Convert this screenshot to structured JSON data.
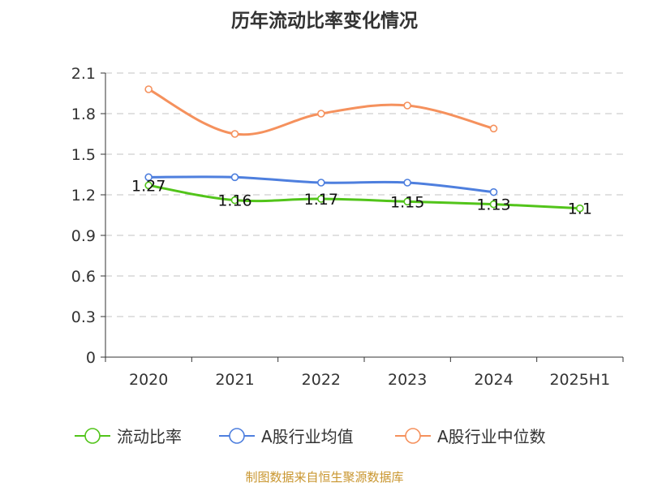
{
  "chart_data": {
    "type": "line",
    "title": "历年流动比率变化情况",
    "categories": [
      "2020",
      "2021",
      "2022",
      "2023",
      "2024",
      "2025H1"
    ],
    "y_ticks": [
      "0",
      "0.3",
      "0.6",
      "0.9",
      "1.2",
      "1.5",
      "1.8",
      "2.1"
    ],
    "ylim": [
      0,
      2.1
    ],
    "grid": true,
    "legend_position": "bottom",
    "series": [
      {
        "name": "流动比率",
        "color": "#52c41a",
        "values": [
          1.27,
          1.16,
          1.17,
          1.15,
          1.13,
          1.1
        ],
        "labels": [
          "1.27",
          "1.16",
          "1.17",
          "1.15",
          "1.13",
          "1.1"
        ],
        "show_labels": true
      },
      {
        "name": "A股行业均值",
        "color": "#4e7fde",
        "values": [
          1.33,
          1.33,
          1.29,
          1.29,
          1.22,
          null
        ],
        "show_labels": false
      },
      {
        "name": "A股行业中位数",
        "color": "#f5915d",
        "values": [
          1.98,
          1.65,
          1.8,
          1.86,
          1.69,
          null
        ],
        "show_labels": false
      }
    ],
    "source": "制图数据来自恒生聚源数据库"
  }
}
